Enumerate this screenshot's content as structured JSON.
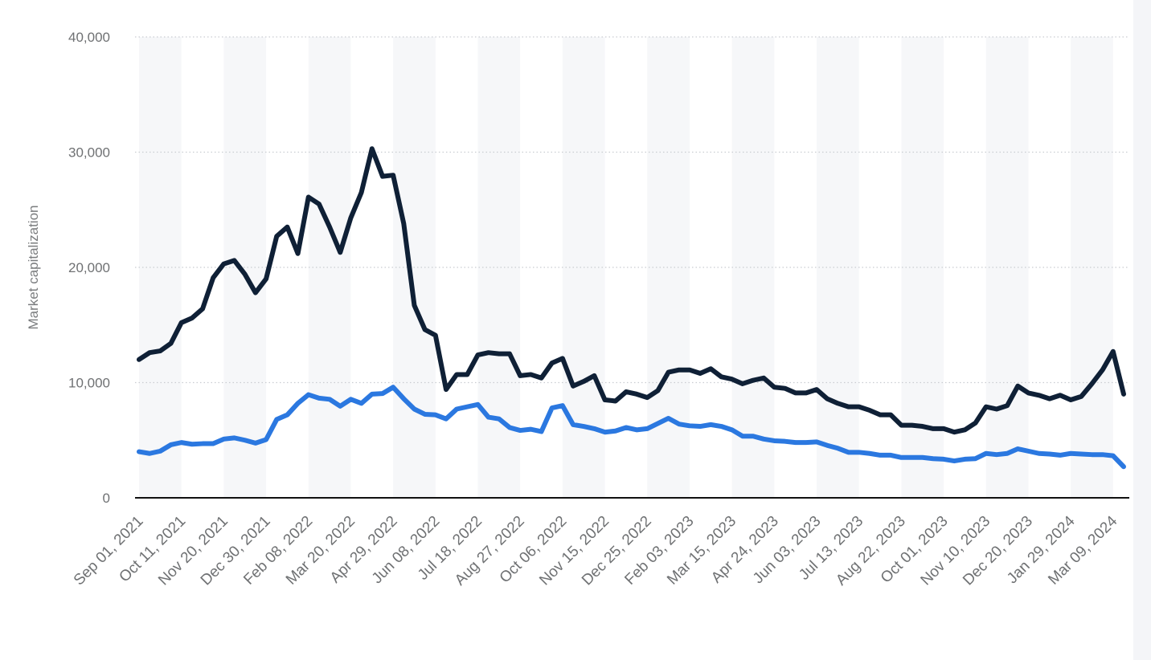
{
  "chart_data": {
    "type": "line",
    "title": "",
    "xlabel": "",
    "ylabel": "Market capitalization",
    "ylim": [
      0,
      40000
    ],
    "yticks": [
      {
        "value": 0,
        "label": "0"
      },
      {
        "value": 10000,
        "label": "10,000"
      },
      {
        "value": 20000,
        "label": "20,000"
      },
      {
        "value": 30000,
        "label": "30,000"
      },
      {
        "value": 40000,
        "label": "40,000"
      }
    ],
    "grid": true,
    "legend": "none",
    "xtick_labels": [
      "Sep 01, 2021",
      "Oct 11, 2021",
      "Nov 20, 2021",
      "Dec 30, 2021",
      "Feb 08, 2022",
      "Mar 20, 2022",
      "Apr 29, 2022",
      "Jun 08, 2022",
      "Jul 18, 2022",
      "Aug 27, 2022",
      "Oct 06, 2022",
      "Nov 15, 2022",
      "Dec 25, 2022",
      "Feb 03, 2023",
      "Mar 15, 2023",
      "Apr 24, 2023",
      "Jun 03, 2023",
      "Jul 13, 2023",
      "Aug 22, 2023",
      "Oct 01, 2023",
      "Nov 10, 2023",
      "Dec 20, 2023",
      "Jan 29, 2024",
      "Mar 09, 2024"
    ],
    "points_per_tick": 4,
    "series": [
      {
        "color": "#0f2036",
        "values": [
          12000,
          12600,
          12750,
          13400,
          15200,
          15600,
          16400,
          19100,
          20300,
          20600,
          19400,
          17800,
          19000,
          22700,
          23500,
          21200,
          26100,
          25500,
          23500,
          21300,
          24300,
          26500,
          30300,
          27900,
          28000,
          23800,
          16700,
          14600,
          14100,
          9400,
          10700,
          10700,
          12400,
          12600,
          12500,
          12500,
          10600,
          10700,
          10400,
          11700,
          12100,
          9700,
          10100,
          10600,
          8500,
          8400,
          9200,
          9000,
          8700,
          9300,
          10900,
          11100,
          11100,
          10800,
          11200,
          10500,
          10300,
          9900,
          10200,
          10400,
          9600,
          9500,
          9100,
          9100,
          9400,
          8600,
          8200,
          7900,
          7900,
          7600,
          7200,
          7200,
          6300,
          6300,
          6200,
          6000,
          6000,
          5700,
          5900,
          6500,
          7900,
          7700,
          8000,
          9700,
          9100,
          8900,
          8600,
          8900,
          8500,
          8800,
          9900,
          11100,
          12700,
          9000
        ]
      },
      {
        "color": "#2b78e0",
        "values": [
          4000,
          3850,
          4050,
          4600,
          4800,
          4650,
          4700,
          4700,
          5100,
          5200,
          5000,
          4750,
          5050,
          6800,
          7200,
          8200,
          8950,
          8650,
          8550,
          7950,
          8550,
          8200,
          9000,
          9050,
          9600,
          8600,
          7700,
          7250,
          7200,
          6850,
          7700,
          7900,
          8100,
          7000,
          6850,
          6100,
          5850,
          5950,
          5750,
          7800,
          8000,
          6350,
          6200,
          6000,
          5700,
          5800,
          6100,
          5900,
          6000,
          6450,
          6900,
          6400,
          6250,
          6200,
          6350,
          6200,
          5900,
          5350,
          5350,
          5100,
          4950,
          4900,
          4800,
          4800,
          4850,
          4550,
          4300,
          3950,
          3950,
          3850,
          3700,
          3700,
          3500,
          3500,
          3500,
          3400,
          3350,
          3200,
          3350,
          3400,
          3850,
          3750,
          3850,
          4250,
          4050,
          3850,
          3800,
          3700,
          3850,
          3800,
          3750,
          3750,
          3650,
          2700
        ]
      }
    ]
  }
}
